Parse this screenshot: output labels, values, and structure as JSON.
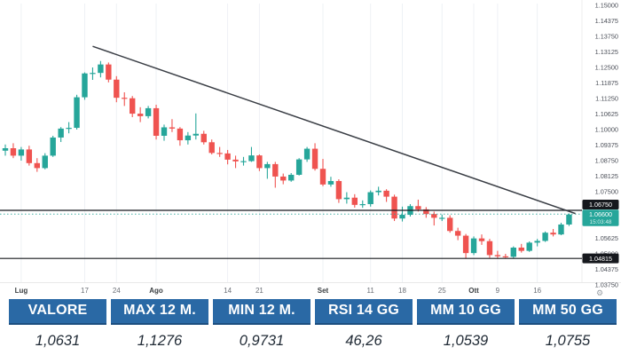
{
  "chart_data": {
    "type": "candlestick",
    "y_axis_ticks": [
      "1.15000",
      "1.14375",
      "1.13750",
      "1.13125",
      "1.12500",
      "1.11875",
      "1.11250",
      "1.10625",
      "1.10000",
      "1.09375",
      "1.08750",
      "1.08125",
      "1.07500",
      "1.06875",
      "1.06250",
      "1.05625",
      "1.05000",
      "1.04375",
      "1.03750"
    ],
    "x_axis_labels": [
      {
        "label": "Lug",
        "index": 2
      },
      {
        "label": "17",
        "index": 10
      },
      {
        "label": "24",
        "index": 14
      },
      {
        "label": "Ago",
        "index": 19
      },
      {
        "label": "14",
        "index": 28
      },
      {
        "label": "21",
        "index": 32
      },
      {
        "label": "Set",
        "index": 40
      },
      {
        "label": "11",
        "index": 46
      },
      {
        "label": "18",
        "index": 50
      },
      {
        "label": "25",
        "index": 55
      },
      {
        "label": "Ott",
        "index": 59
      },
      {
        "label": "9",
        "index": 62
      },
      {
        "label": "16",
        "index": 67
      }
    ],
    "y_range": {
      "top_price": 1.15,
      "bottom_price": 1.0375
    },
    "candles": [
      [
        1.0915,
        1.094,
        1.0895,
        1.0925
      ],
      [
        1.0925,
        1.0945,
        1.0885,
        1.0895
      ],
      [
        1.0895,
        1.093,
        1.0875,
        1.092
      ],
      [
        1.092,
        1.0935,
        1.0855,
        1.0865
      ],
      [
        1.0865,
        1.0885,
        1.083,
        1.0845
      ],
      [
        1.0845,
        1.0905,
        1.084,
        1.0895
      ],
      [
        1.0895,
        1.0975,
        1.089,
        1.0968
      ],
      [
        1.0968,
        1.101,
        1.095,
        1.1004
      ],
      [
        1.1004,
        1.103,
        1.0985,
        1.1007
      ],
      [
        1.1007,
        1.114,
        1.1,
        1.113
      ],
      [
        1.113,
        1.123,
        1.112,
        1.1226
      ],
      [
        1.1226,
        1.125,
        1.12,
        1.1228
      ],
      [
        1.1228,
        1.1276,
        1.121,
        1.1262
      ],
      [
        1.1262,
        1.127,
        1.119,
        1.1201
      ],
      [
        1.1201,
        1.1215,
        1.111,
        1.1128
      ],
      [
        1.1128,
        1.115,
        1.1095,
        1.1126
      ],
      [
        1.1126,
        1.1135,
        1.105,
        1.1064
      ],
      [
        1.1064,
        1.109,
        1.103,
        1.1054
      ],
      [
        1.1054,
        1.1095,
        1.1045,
        1.1086
      ],
      [
        1.1086,
        1.11,
        1.096,
        1.0975
      ],
      [
        1.0975,
        1.102,
        1.0955,
        1.1009
      ],
      [
        1.1009,
        1.1042,
        1.099,
        1.1004
      ],
      [
        1.1004,
        1.101,
        1.0935,
        1.0957
      ],
      [
        1.0957,
        1.099,
        1.094,
        1.0976
      ],
      [
        1.0976,
        1.1065,
        1.096,
        1.0983
      ],
      [
        1.0983,
        1.0995,
        1.094,
        1.0949
      ],
      [
        1.0949,
        1.096,
        1.09,
        1.0906
      ],
      [
        1.0906,
        1.093,
        1.089,
        1.0904
      ],
      [
        1.0904,
        1.0918,
        1.086,
        1.0879
      ],
      [
        1.0879,
        1.0895,
        1.0845,
        1.0872
      ],
      [
        1.0872,
        1.089,
        1.0855,
        1.0873
      ],
      [
        1.0873,
        1.093,
        1.087,
        1.0896
      ],
      [
        1.0896,
        1.09,
        1.0833,
        1.0845
      ],
      [
        1.0845,
        1.087,
        1.0802,
        1.0861
      ],
      [
        1.0861,
        1.087,
        1.0766,
        1.0811
      ],
      [
        1.0811,
        1.0823,
        1.078,
        1.0795
      ],
      [
        1.0795,
        1.0825,
        1.079,
        1.0818
      ],
      [
        1.0818,
        1.0885,
        1.0815,
        1.088
      ],
      [
        1.088,
        1.093,
        1.087,
        1.0923
      ],
      [
        1.0923,
        1.0945,
        1.0835,
        1.0842
      ],
      [
        1.0842,
        1.0882,
        1.0772,
        1.0779
      ],
      [
        1.0779,
        1.081,
        1.077,
        1.0793
      ],
      [
        1.0793,
        1.08,
        1.0705,
        1.072
      ],
      [
        1.072,
        1.0748,
        1.0702,
        1.0726
      ],
      [
        1.0726,
        1.074,
        1.0686,
        1.0697
      ],
      [
        1.0697,
        1.0715,
        1.0685,
        1.07
      ],
      [
        1.07,
        1.0755,
        1.069,
        1.0748
      ],
      [
        1.0748,
        1.077,
        1.0735,
        1.0754
      ],
      [
        1.0754,
        1.076,
        1.0709,
        1.073
      ],
      [
        1.073,
        1.0738,
        1.0632,
        1.0642
      ],
      [
        1.0642,
        1.069,
        1.063,
        1.0657
      ],
      [
        1.0657,
        1.07,
        1.065,
        1.0692
      ],
      [
        1.0692,
        1.0718,
        1.067,
        1.0679
      ],
      [
        1.0679,
        1.0688,
        1.0645,
        1.066
      ],
      [
        1.066,
        1.067,
        1.0614,
        1.0645
      ],
      [
        1.0645,
        1.0658,
        1.0632,
        1.0645
      ],
      [
        1.0645,
        1.0655,
        1.0585,
        1.0592
      ],
      [
        1.0592,
        1.0605,
        1.0555,
        1.0573
      ],
      [
        1.0573,
        1.058,
        1.0482,
        1.0503
      ],
      [
        1.0503,
        1.057,
        1.0495,
        1.0562
      ],
      [
        1.0562,
        1.0578,
        1.0536,
        1.0551
      ],
      [
        1.0551,
        1.056,
        1.0484,
        1.0495
      ],
      [
        1.0495,
        1.0512,
        1.0482,
        1.049
      ],
      [
        1.049,
        1.05,
        1.0483,
        1.0488
      ],
      [
        1.0488,
        1.053,
        1.0482,
        1.0525
      ],
      [
        1.0525,
        1.054,
        1.0505,
        1.0512
      ],
      [
        1.0512,
        1.055,
        1.0508,
        1.0545
      ],
      [
        1.0545,
        1.056,
        1.053,
        1.0552
      ],
      [
        1.0552,
        1.059,
        1.0548,
        1.0585
      ],
      [
        1.0585,
        1.06,
        1.057,
        1.0578
      ],
      [
        1.0578,
        1.0625,
        1.0575,
        1.0618
      ],
      [
        1.0618,
        1.0662,
        1.0612,
        1.0658
      ]
    ],
    "trendline": {
      "from": {
        "index": 11,
        "price": 1.1335
      },
      "to": {
        "index": 71.8,
        "price": 1.0662
      }
    },
    "horizontal_lines": [
      {
        "price": 1.0675,
        "label": "1.06750"
      },
      {
        "price": 1.04815,
        "label": "1.04815"
      }
    ],
    "current_price": {
      "price": 1.066,
      "label": "1.06600",
      "countdown": "15:03:48"
    },
    "colors": {
      "up": "#26a69a",
      "down": "#ef5350",
      "line": "#16181d",
      "trend": "#3a3e45",
      "grid": "#eef1f5",
      "axis_text": "#4a4e57"
    },
    "legend_position": "none",
    "grid": "faint-vertical"
  },
  "table": {
    "columns": [
      {
        "header": "VALORE",
        "value": "1,0631"
      },
      {
        "header": "MAX 12 M.",
        "value": "1,1276"
      },
      {
        "header": "MIN 12 M.",
        "value": "0,9731"
      },
      {
        "header": "RSI 14 GG",
        "value": "46,26"
      },
      {
        "header": "MM 10 GG",
        "value": "1,0539"
      },
      {
        "header": "MM 50 GG",
        "value": "1,0755"
      }
    ],
    "header_bg": "#2a69a5",
    "header_text": "#ffffff",
    "value_text": "#212b36"
  },
  "misc": {
    "gear_icon": "⚙"
  }
}
